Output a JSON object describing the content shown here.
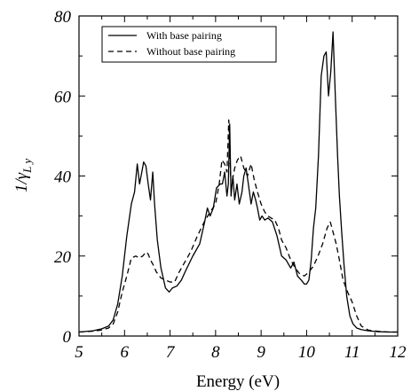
{
  "chart_data": {
    "type": "line",
    "xlabel": "Energy (eV)",
    "ylabel": {
      "main": "1/γ",
      "sub": "L y"
    },
    "xlim": [
      5,
      12
    ],
    "ylim": [
      0,
      80
    ],
    "xticks": [
      5,
      6,
      7,
      8,
      9,
      10,
      11,
      12
    ],
    "yticks": [
      0,
      20,
      40,
      60,
      80
    ],
    "legend_position": "top-left",
    "series": [
      {
        "name": "With base pairing",
        "style": "solid",
        "color": "#000000",
        "x": [
          5.0,
          5.3,
          5.5,
          5.65,
          5.75,
          5.85,
          5.95,
          6.05,
          6.15,
          6.22,
          6.28,
          6.33,
          6.38,
          6.42,
          6.47,
          6.52,
          6.57,
          6.62,
          6.66,
          6.72,
          6.8,
          6.9,
          6.98,
          7.05,
          7.15,
          7.25,
          7.35,
          7.5,
          7.65,
          7.75,
          7.82,
          7.88,
          7.95,
          8.02,
          8.1,
          8.15,
          8.2,
          8.25,
          8.28,
          8.31,
          8.34,
          8.38,
          8.42,
          8.47,
          8.52,
          8.58,
          8.62,
          8.67,
          8.72,
          8.78,
          8.83,
          8.88,
          8.92,
          8.97,
          9.02,
          9.08,
          9.15,
          9.25,
          9.35,
          9.45,
          9.55,
          9.65,
          9.72,
          9.8,
          9.88,
          9.95,
          10.0,
          10.05,
          10.1,
          10.15,
          10.2,
          10.26,
          10.32,
          10.38,
          10.43,
          10.48,
          10.53,
          10.58,
          10.63,
          10.68,
          10.72,
          10.77,
          10.82,
          10.88,
          10.95,
          11.02,
          11.1,
          11.2,
          11.35,
          11.55,
          11.8,
          12.0
        ],
        "y": [
          1.0,
          1.3,
          1.8,
          2.5,
          4.0,
          8.0,
          15.0,
          25.0,
          33.0,
          36.0,
          43.0,
          38.0,
          41.0,
          43.5,
          42.5,
          38.0,
          34.0,
          41.0,
          33.0,
          24.0,
          17.0,
          12.0,
          11.0,
          12.0,
          12.5,
          14.0,
          16.5,
          20.0,
          23.0,
          28.0,
          32.0,
          30.0,
          32.0,
          37.0,
          38.0,
          38.0,
          41.0,
          35.0,
          38.0,
          53.0,
          35.0,
          40.0,
          34.0,
          38.0,
          33.0,
          36.0,
          40.0,
          42.0,
          38.0,
          33.0,
          36.0,
          34.0,
          32.0,
          29.0,
          30.0,
          29.0,
          29.5,
          28.5,
          25.0,
          20.0,
          19.0,
          17.0,
          18.5,
          15.0,
          14.0,
          13.0,
          13.0,
          14.0,
          19.0,
          27.0,
          32.0,
          45.0,
          65.0,
          70.0,
          71.0,
          60.0,
          66.0,
          76.0,
          60.0,
          45.0,
          35.0,
          26.0,
          18.0,
          10.0,
          5.0,
          3.0,
          2.0,
          1.6,
          1.3,
          1.1,
          1.0,
          1.0
        ]
      },
      {
        "name": "Without base pairing",
        "style": "dashed",
        "color": "#000000",
        "x": [
          5.0,
          5.3,
          5.5,
          5.65,
          5.75,
          5.85,
          5.95,
          6.05,
          6.15,
          6.25,
          6.32,
          6.4,
          6.47,
          6.52,
          6.57,
          6.62,
          6.7,
          6.8,
          6.9,
          7.0,
          7.1,
          7.2,
          7.3,
          7.45,
          7.6,
          7.75,
          7.88,
          8.0,
          8.08,
          8.14,
          8.2,
          8.25,
          8.29,
          8.33,
          8.37,
          8.42,
          8.48,
          8.55,
          8.62,
          8.7,
          8.78,
          8.85,
          8.92,
          9.0,
          9.08,
          9.15,
          9.22,
          9.3,
          9.38,
          9.45,
          9.55,
          9.65,
          9.75,
          9.85,
          9.95,
          10.05,
          10.15,
          10.25,
          10.35,
          10.45,
          10.52,
          10.58,
          10.65,
          10.72,
          10.8,
          10.9,
          11.0,
          11.1,
          11.2,
          11.35,
          11.55,
          11.8,
          12.0
        ],
        "y": [
          1.0,
          1.2,
          1.5,
          2.0,
          3.0,
          6.0,
          11.0,
          15.0,
          19.5,
          20.0,
          19.5,
          20.0,
          21.0,
          20.5,
          19.0,
          18.0,
          16.0,
          14.5,
          14.0,
          13.5,
          13.5,
          16.0,
          18.0,
          21.0,
          25.0,
          28.5,
          31.0,
          33.0,
          38.0,
          44.0,
          43.0,
          41.0,
          54.0,
          40.0,
          39.0,
          42.0,
          44.0,
          45.0,
          42.0,
          40.0,
          43.0,
          39.0,
          36.0,
          33.0,
          31.0,
          30.0,
          29.5,
          29.0,
          27.0,
          24.0,
          22.0,
          19.0,
          17.0,
          15.5,
          15.0,
          16.0,
          17.5,
          20.0,
          23.0,
          27.0,
          28.5,
          26.0,
          23.0,
          19.0,
          14.0,
          11.0,
          8.5,
          5.0,
          2.5,
          1.5,
          1.2,
          1.0,
          1.0
        ]
      }
    ]
  }
}
